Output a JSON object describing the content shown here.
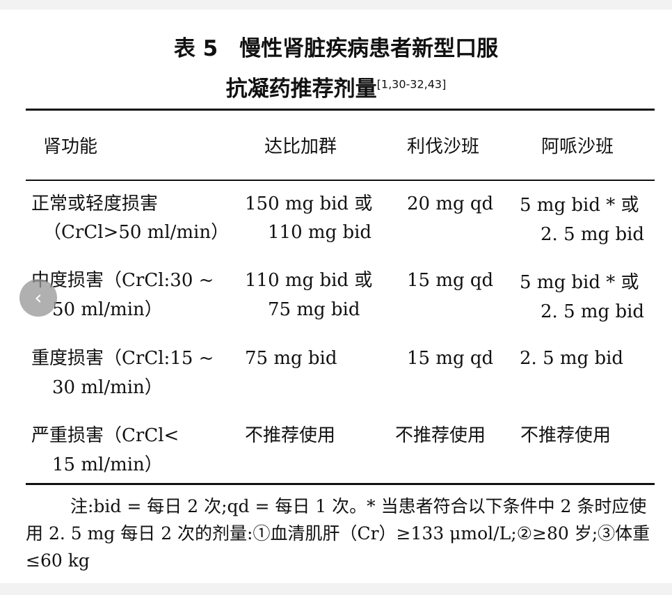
{
  "title": {
    "line1": "表 5　慢性肾脏疾病患者新型口服",
    "line2": "抗凝药推荐剂量",
    "refs": "[1,30-32,43]"
  },
  "table": {
    "headers": [
      "肾功能",
      "达比加群",
      "利伐沙班",
      "阿哌沙班"
    ],
    "rows": [
      {
        "function": [
          "正常或轻度损害",
          "（CrCl>50 ml/min）"
        ],
        "dabigatran": [
          "150 mg bid 或",
          "110 mg bid"
        ],
        "rivaroxaban": [
          "20 mg qd"
        ],
        "apixaban": [
          "5 mg bid * 或",
          "2. 5 mg bid"
        ]
      },
      {
        "function": [
          "中度损害（CrCl:30 ~",
          "50 ml/min）"
        ],
        "dabigatran": [
          "110 mg bid 或",
          "75 mg bid"
        ],
        "rivaroxaban": [
          "15 mg qd"
        ],
        "apixaban": [
          "5 mg bid * 或",
          "2. 5 mg bid"
        ]
      },
      {
        "function": [
          "重度损害（CrCl:15 ~",
          "30 ml/min）"
        ],
        "dabigatran": [
          "75 mg bid"
        ],
        "rivaroxaban": [
          "15 mg qd"
        ],
        "apixaban": [
          "2. 5 mg bid"
        ]
      },
      {
        "function": [
          "严重损害（CrCl<",
          "15 ml/min）"
        ],
        "dabigatran": [
          "不推荐使用"
        ],
        "rivaroxaban": [
          "不推荐使用"
        ],
        "apixaban": [
          "不推荐使用"
        ]
      }
    ]
  },
  "note": "注:bid = 每日 2 次;qd = 每日 1 次。* 当患者符合以下条件中 2 条时应使用 2. 5 mg 每日 2 次的剂量:①血清肌肝（Cr）≥133 μmol/L;②≥80 岁;③体重≤60 kg",
  "carousel": {
    "prev_icon": "chevron-left-icon",
    "prev_glyph": "‹"
  }
}
